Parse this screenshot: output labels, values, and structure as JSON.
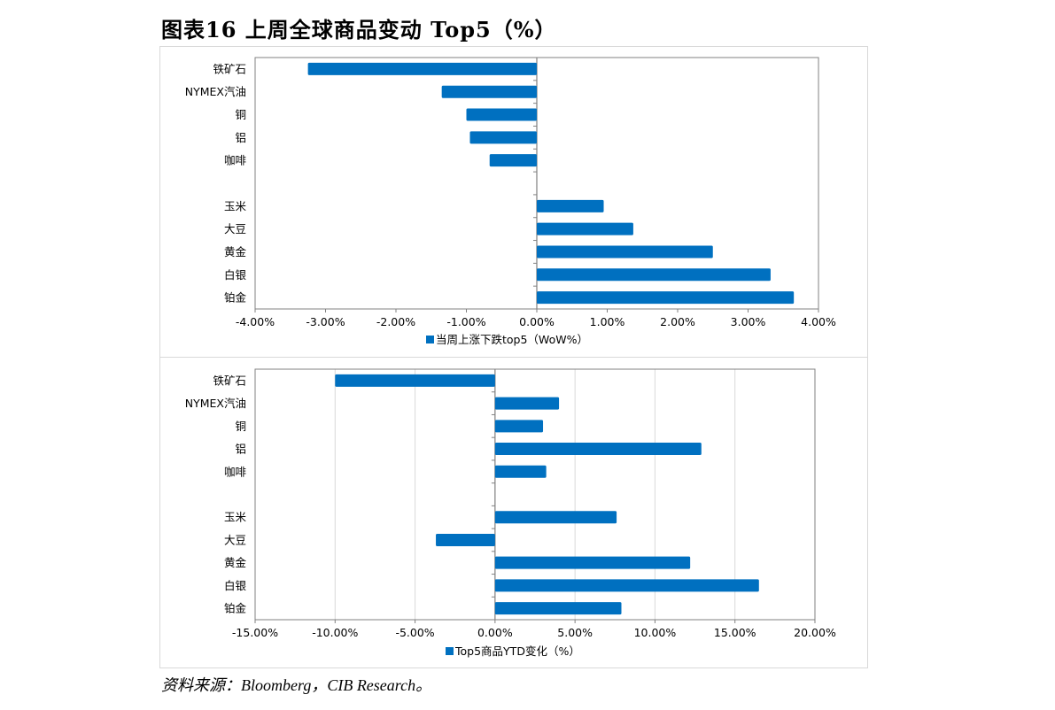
{
  "title": "图表16   上周全球商品变动 Top5（%）",
  "source": "资料来源：Bloomberg，CIB Research。",
  "colors": {
    "bar": "#0070c0",
    "axis": "#808080",
    "grid": "#d9d9d9"
  },
  "chart_data": [
    {
      "type": "bar",
      "orientation": "horizontal",
      "categories": [
        "铁矿石",
        "NYMEX汽油",
        "铜",
        "铝",
        "咖啡",
        "",
        "玉米",
        "大豆",
        "黄金",
        "白银",
        "铂金"
      ],
      "series": [
        {
          "name": "当周上涨下跌top5（WoW%）",
          "values": [
            -3.25,
            -1.35,
            -1.0,
            -0.95,
            -0.67,
            null,
            0.95,
            1.37,
            2.5,
            3.32,
            3.65
          ]
        }
      ],
      "x_ticks": [
        "-4.00%",
        "-3.00%",
        "-2.00%",
        "-1.00%",
        "0.00%",
        "1.00%",
        "2.00%",
        "3.00%",
        "4.00%"
      ],
      "xlim": [
        -4,
        4
      ],
      "legend_position": "bottom",
      "grid": false
    },
    {
      "type": "bar",
      "orientation": "horizontal",
      "categories": [
        "铁矿石",
        "NYMEX汽油",
        "铜",
        "铝",
        "咖啡",
        "",
        "玉米",
        "大豆",
        "黄金",
        "白银",
        "铂金"
      ],
      "series": [
        {
          "name": "Top5商品YTD变化（%）",
          "values": [
            -10.0,
            4.0,
            3.0,
            12.9,
            3.2,
            null,
            7.6,
            -3.7,
            12.2,
            16.5,
            7.9
          ]
        }
      ],
      "x_ticks": [
        "-15.00%",
        "-10.00%",
        "-5.00%",
        "0.00%",
        "5.00%",
        "10.00%",
        "15.00%",
        "20.00%"
      ],
      "xlim": [
        -15,
        20
      ],
      "legend_position": "bottom",
      "grid": true
    }
  ]
}
